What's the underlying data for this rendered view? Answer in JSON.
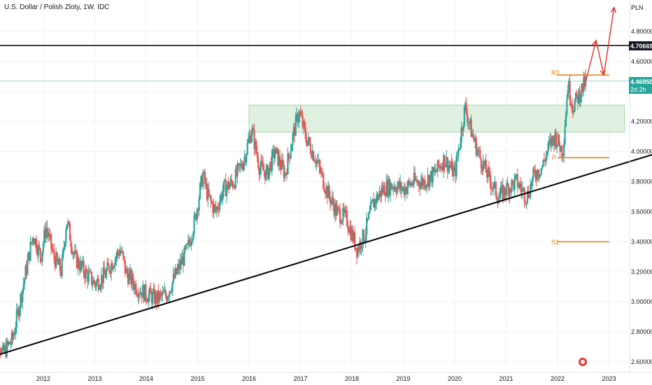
{
  "header": {
    "title": "U.S. Dollar / Polish Zloty, 1W, IDC"
  },
  "price_axis": {
    "currency": "PLN"
  },
  "badges": {
    "resistance_value": "4.706695",
    "last_value": "4.469500",
    "countdown": "2d 2h"
  },
  "pivot_labels": {
    "r2": "R2",
    "p": "P",
    "s1": "S1"
  },
  "colors": {
    "up": "#26a69a",
    "down": "#ef5350",
    "pivot": "#f57c00",
    "arrow": "#e53935",
    "zone": "#c8e6c9",
    "trend": "#000000"
  },
  "chart_data": {
    "type": "candlestick",
    "title": "U.S. Dollar / Polish Zloty, 1W, IDC",
    "xlabel": "",
    "ylabel": "PLN",
    "ylim": [
      2.55,
      5.0
    ],
    "xlim": [
      2011.0,
      2023.5
    ],
    "y_ticks": [
      "2.600000",
      "2.800000",
      "3.000000",
      "3.200000",
      "3.400000",
      "3.600000",
      "3.800000",
      "4.000000",
      "4.200000",
      "4.400000",
      "4.600000",
      "4.800000"
    ],
    "x_ticks": [
      "2012",
      "2013",
      "2014",
      "2015",
      "2016",
      "2017",
      "2018",
      "2019",
      "2020",
      "2021",
      "2022",
      "2023"
    ],
    "price_path": [
      [
        2011.0,
        2.95
      ],
      [
        2011.2,
        2.65
      ],
      [
        2011.4,
        2.75
      ],
      [
        2011.6,
        3.1
      ],
      [
        2011.8,
        3.45
      ],
      [
        2011.95,
        3.3
      ],
      [
        2012.05,
        3.5
      ],
      [
        2012.2,
        3.3
      ],
      [
        2012.35,
        3.2
      ],
      [
        2012.45,
        3.55
      ],
      [
        2012.6,
        3.3
      ],
      [
        2012.8,
        3.2
      ],
      [
        2013.0,
        3.12
      ],
      [
        2013.2,
        3.18
      ],
      [
        2013.4,
        3.3
      ],
      [
        2013.5,
        3.35
      ],
      [
        2013.6,
        3.2
      ],
      [
        2013.8,
        3.1
      ],
      [
        2014.0,
        3.05
      ],
      [
        2014.2,
        3.02
      ],
      [
        2014.4,
        3.05
      ],
      [
        2014.6,
        3.2
      ],
      [
        2014.8,
        3.35
      ],
      [
        2014.95,
        3.55
      ],
      [
        2015.1,
        3.85
      ],
      [
        2015.2,
        3.7
      ],
      [
        2015.35,
        3.6
      ],
      [
        2015.5,
        3.75
      ],
      [
        2015.7,
        3.8
      ],
      [
        2015.9,
        3.95
      ],
      [
        2016.05,
        4.15
      ],
      [
        2016.2,
        3.9
      ],
      [
        2016.35,
        3.85
      ],
      [
        2016.5,
        4.0
      ],
      [
        2016.7,
        3.85
      ],
      [
        2016.85,
        4.1
      ],
      [
        2016.97,
        4.27
      ],
      [
        2017.1,
        4.1
      ],
      [
        2017.3,
        3.95
      ],
      [
        2017.5,
        3.75
      ],
      [
        2017.7,
        3.6
      ],
      [
        2017.9,
        3.55
      ],
      [
        2018.1,
        3.35
      ],
      [
        2018.25,
        3.45
      ],
      [
        2018.4,
        3.65
      ],
      [
        2018.6,
        3.75
      ],
      [
        2018.8,
        3.78
      ],
      [
        2019.0,
        3.75
      ],
      [
        2019.2,
        3.8
      ],
      [
        2019.4,
        3.8
      ],
      [
        2019.6,
        3.85
      ],
      [
        2019.8,
        3.95
      ],
      [
        2020.0,
        3.85
      ],
      [
        2020.2,
        4.3
      ],
      [
        2020.35,
        4.1
      ],
      [
        2020.5,
        3.95
      ],
      [
        2020.7,
        3.8
      ],
      [
        2020.85,
        3.7
      ],
      [
        2021.0,
        3.75
      ],
      [
        2021.2,
        3.8
      ],
      [
        2021.4,
        3.7
      ],
      [
        2021.55,
        3.85
      ],
      [
        2021.7,
        3.9
      ],
      [
        2021.85,
        4.05
      ],
      [
        2021.95,
        4.1
      ],
      [
        2022.1,
        4.0
      ],
      [
        2022.2,
        4.45
      ],
      [
        2022.3,
        4.3
      ],
      [
        2022.45,
        4.4
      ],
      [
        2022.55,
        4.47
      ]
    ],
    "series": [
      {
        "values": [
          [
            2011.05,
            2.64
          ],
          [
            2022.6,
            3.85
          ]
        ]
      }
    ],
    "annotations": {
      "horizontal_resistance": 4.706695,
      "last_price": 4.4695,
      "r2": 4.51,
      "p": 3.96,
      "s1": 3.4,
      "consolidation_zone": {
        "x_start": 2016.0,
        "x_end": 2023.3,
        "y_low": 4.13,
        "y_high": 4.31
      },
      "projection": [
        [
          2022.55,
          4.47
        ],
        [
          2022.75,
          4.74
        ],
        [
          2022.9,
          4.51
        ],
        [
          2023.1,
          4.96
        ]
      ]
    }
  }
}
